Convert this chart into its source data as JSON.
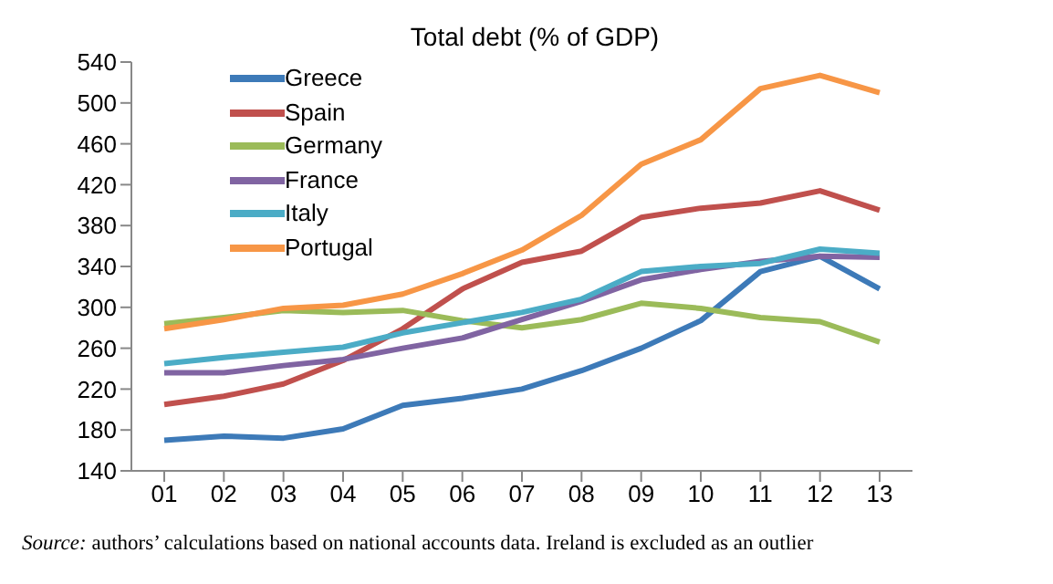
{
  "chart_data": {
    "type": "line",
    "title": "Total debt (% of GDP)",
    "categories": [
      "01",
      "02",
      "03",
      "04",
      "05",
      "06",
      "07",
      "08",
      "09",
      "10",
      "11",
      "12",
      "13"
    ],
    "series": [
      {
        "name": "Greece",
        "color": "#3d7ab8",
        "values": [
          170,
          174,
          172,
          181,
          204,
          211,
          220,
          238,
          260,
          287,
          335,
          350,
          318
        ]
      },
      {
        "name": "Spain",
        "color": "#c0504d",
        "values": [
          205,
          213,
          225,
          248,
          279,
          318,
          344,
          355,
          388,
          397,
          402,
          414,
          395
        ]
      },
      {
        "name": "Germany",
        "color": "#9bbb59",
        "values": [
          284,
          290,
          297,
          295,
          297,
          287,
          280,
          288,
          304,
          299,
          290,
          286,
          266
        ]
      },
      {
        "name": "France",
        "color": "#8064a2",
        "values": [
          236,
          236,
          243,
          249,
          260,
          270,
          288,
          306,
          327,
          337,
          345,
          350,
          349
        ]
      },
      {
        "name": "Italy",
        "color": "#4bacc6",
        "values": [
          245,
          251,
          256,
          261,
          275,
          285,
          295,
          308,
          335,
          340,
          343,
          357,
          353
        ]
      },
      {
        "name": "Portugal",
        "color": "#f79646",
        "values": [
          279,
          288,
          299,
          302,
          313,
          333,
          356,
          390,
          440,
          464,
          514,
          527,
          510
        ]
      }
    ],
    "ylim": [
      140,
      540
    ],
    "yticks": [
      140,
      180,
      220,
      260,
      300,
      340,
      380,
      420,
      460,
      500,
      540
    ],
    "grid": false,
    "legend": "top left",
    "marker": "none",
    "line_style": "solid",
    "annotations": [
      "Source: authors’ calculations based on national accounts data. Ireland is excluded as an outlier"
    ]
  }
}
